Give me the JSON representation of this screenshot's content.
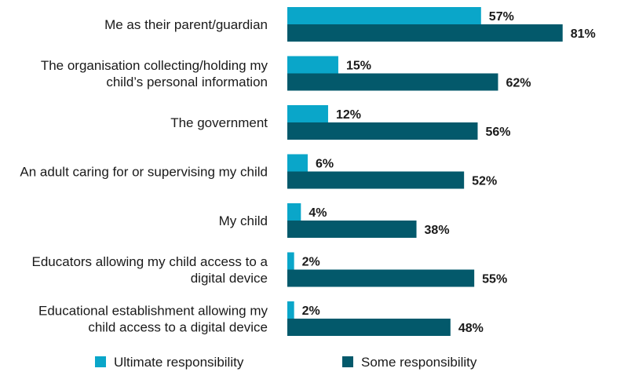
{
  "chart_data": {
    "type": "bar",
    "orientation": "horizontal",
    "categories": [
      [
        "Me as their parent/guardian"
      ],
      [
        "The organisation collecting/holding my",
        "child’s personal information"
      ],
      [
        "The government"
      ],
      [
        "An adult caring for or supervising my child"
      ],
      [
        "My child"
      ],
      [
        "Educators allowing my child access to a",
        "digital device"
      ],
      [
        "Educational establishment allowing my",
        "child access to a digital device"
      ]
    ],
    "series": [
      {
        "name": "Ultimate responsibility",
        "color": "#0aa6c9",
        "values": [
          57,
          15,
          12,
          6,
          4,
          2,
          2
        ]
      },
      {
        "name": "Some responsibility",
        "color": "#03596b",
        "values": [
          81,
          62,
          56,
          52,
          38,
          55,
          48
        ]
      }
    ],
    "value_suffix": "%",
    "xlim": [
      0,
      100
    ],
    "grid": false,
    "legend": "bottom"
  }
}
